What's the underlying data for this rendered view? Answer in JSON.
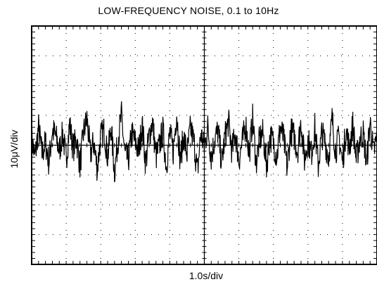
{
  "chart_data": {
    "type": "line",
    "title": "LOW-FREQUENCY NOISE, 0.1 to 10Hz",
    "xlabel": "1.0s/div",
    "ylabel": "10μV/div",
    "xlim": [
      0,
      10
    ],
    "ylim": [
      -40,
      40
    ],
    "x_divisions": 10,
    "y_divisions": 8,
    "grid": true,
    "grid_style": "dotted",
    "series": [
      {
        "values_per_div_note": "",
        "x": [
          0,
          0.1,
          0.2,
          0.3,
          0.4,
          0.5,
          0.6,
          0.7,
          0.8,
          0.9,
          1.0,
          1.1,
          1.2,
          1.3,
          1.4,
          1.5,
          1.6,
          1.7,
          1.8,
          1.9,
          2.0,
          2.1,
          2.2,
          2.3,
          2.4,
          2.5,
          2.6,
          2.7,
          2.8,
          2.9,
          3.0,
          3.1,
          3.2,
          3.3,
          3.4,
          3.5,
          3.6,
          3.7,
          3.8,
          3.9,
          4.0,
          4.1,
          4.2,
          4.3,
          4.4,
          4.5,
          4.6,
          4.7,
          4.8,
          4.9,
          5.0,
          5.1,
          5.2,
          5.3,
          5.4,
          5.5,
          5.6,
          5.7,
          5.8,
          5.9,
          6.0,
          6.1,
          6.2,
          6.3,
          6.4,
          6.5,
          6.6,
          6.7,
          6.8,
          6.9,
          7.0,
          7.1,
          7.2,
          7.3,
          7.4,
          7.5,
          7.6,
          7.7,
          7.8,
          7.9,
          8.0,
          8.1,
          8.2,
          8.3,
          8.4,
          8.5,
          8.6,
          8.7,
          8.8,
          8.9,
          9.0,
          9.1,
          9.2,
          9.3,
          9.4,
          9.5,
          9.6,
          9.7,
          9.8,
          9.9,
          10.0
        ],
        "values": [
          2,
          -4,
          6,
          -3,
          1,
          -6,
          5,
          3,
          -2,
          4,
          -5,
          7,
          -1,
          2,
          -7,
          4,
          9,
          -3,
          1,
          -8,
          3,
          5,
          -4,
          6,
          -9,
          2,
          10,
          -3,
          -5,
          4,
          1,
          -2,
          7,
          -6,
          3,
          8,
          -4,
          0,
          5,
          -7,
          4,
          -2,
          11,
          -5,
          3,
          -3,
          6,
          1,
          -9,
          4,
          -1,
          6,
          -4,
          2,
          5,
          -6,
          3,
          8,
          -2,
          4,
          -5,
          1,
          7,
          -3,
          9,
          -6,
          2,
          4,
          -7,
          3,
          1,
          -4,
          6,
          2,
          -8,
          5,
          3,
          -2,
          8,
          -5,
          2,
          -3,
          6,
          -7,
          4,
          1,
          -4,
          9,
          -2,
          3,
          -6,
          5,
          -1,
          7,
          -5,
          2,
          4,
          -6,
          8,
          -3,
          3
        ]
      }
    ]
  }
}
